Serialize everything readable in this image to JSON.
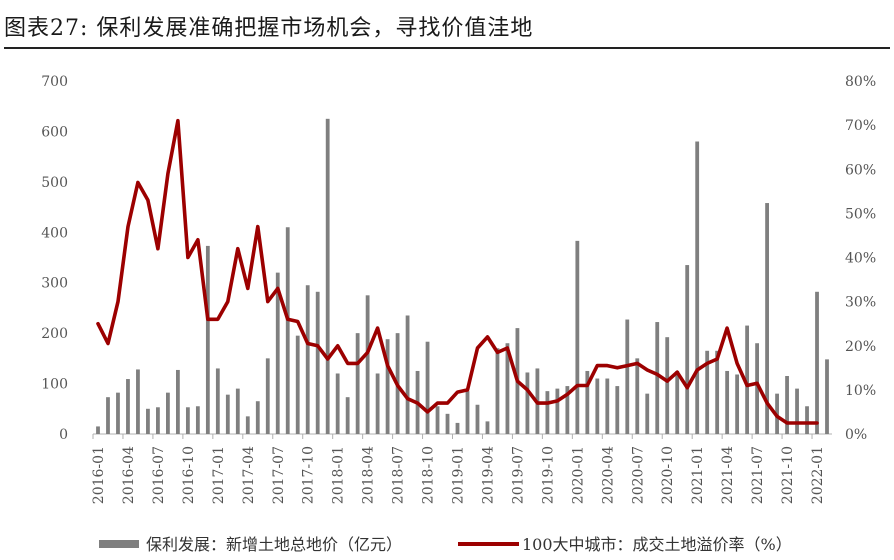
{
  "title": "图表27: 保利发展准确把握市场机会，寻找价值洼地",
  "chart_data": {
    "type": "bar+line",
    "left_axis": {
      "ylim": [
        0,
        700
      ],
      "ticks": [
        0,
        100,
        200,
        300,
        400,
        500,
        600,
        700
      ]
    },
    "right_axis": {
      "ylim": [
        0,
        80
      ],
      "ticks": [
        "0%",
        "10%",
        "20%",
        "30%",
        "40%",
        "50%",
        "60%",
        "70%",
        "80%"
      ]
    },
    "x_tick_labels": [
      "2016-01",
      "2016-04",
      "2016-07",
      "2016-10",
      "2017-01",
      "2017-04",
      "2017-07",
      "2017-10",
      "2018-01",
      "2018-04",
      "2018-07",
      "2018-10",
      "2019-01",
      "2019-04",
      "2019-07",
      "2019-10",
      "2020-01",
      "2020-04",
      "2020-07",
      "2020-10",
      "2021-01",
      "2021-04",
      "2021-07",
      "2021-10",
      "2022-01"
    ],
    "series": [
      {
        "name": "保利发展：新增土地总地价（亿元）",
        "type": "bar",
        "axis": "left",
        "color": "#7f7f7f",
        "values": [
          15,
          73,
          82,
          109,
          128,
          50,
          53,
          82,
          127,
          53,
          55,
          373,
          130,
          78,
          90,
          35,
          65,
          150,
          320,
          410,
          195,
          295,
          282,
          625,
          120,
          73,
          200,
          275,
          120,
          188,
          200,
          235,
          125,
          183,
          55,
          40,
          22,
          85,
          58,
          25,
          170,
          180,
          210,
          122,
          130,
          85,
          90,
          95,
          383,
          125,
          110,
          110,
          95,
          227,
          150,
          80,
          222,
          192,
          125,
          335,
          580,
          165,
          165,
          125,
          118,
          215,
          180,
          458,
          80,
          115,
          90,
          55,
          282,
          148
        ]
      },
      {
        "name": "100大中城市：成交土地溢价率（%）",
        "type": "line",
        "axis": "right",
        "color": "#9c0000",
        "values": [
          25,
          20.5,
          30,
          47,
          57,
          53,
          42,
          59,
          71,
          40,
          44,
          26,
          26,
          30,
          42,
          33,
          47,
          30,
          33,
          26,
          25.5,
          20.5,
          20,
          17,
          20,
          16,
          16,
          18.5,
          24,
          15.5,
          11,
          8,
          7,
          5,
          7,
          7,
          9.5,
          10,
          19.5,
          22,
          18.5,
          19.5,
          12,
          10,
          7,
          7,
          7.5,
          9,
          11,
          11,
          15.5,
          15.5,
          15,
          15.5,
          16,
          14.5,
          13.5,
          12,
          14,
          10.5,
          14.5,
          16,
          17,
          24,
          16,
          11,
          11.5,
          7,
          4,
          2.5,
          2.5,
          2.5,
          2.5
        ]
      }
    ]
  }
}
